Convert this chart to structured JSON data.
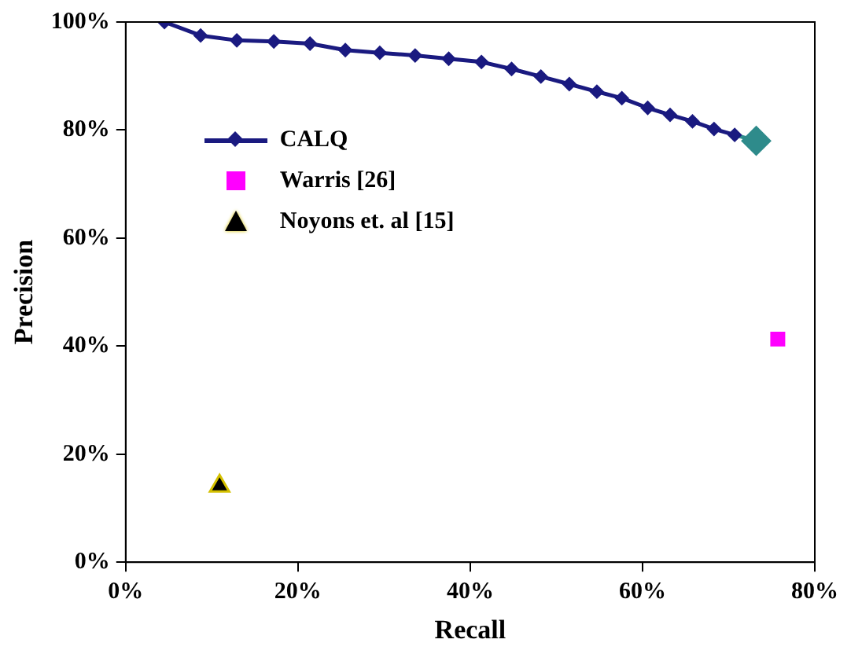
{
  "chart_data": {
    "type": "line",
    "xlabel": "Recall",
    "ylabel": "Precision",
    "xlim": [
      0,
      80
    ],
    "ylim": [
      0,
      100
    ],
    "xticks": [
      {
        "value": 0,
        "label": "0%"
      },
      {
        "value": 20,
        "label": "20%"
      },
      {
        "value": 40,
        "label": "40%"
      },
      {
        "value": 60,
        "label": "60%"
      },
      {
        "value": 80,
        "label": "80%"
      }
    ],
    "yticks": [
      {
        "value": 0,
        "label": "0%"
      },
      {
        "value": 20,
        "label": "20%"
      },
      {
        "value": 40,
        "label": "40%"
      },
      {
        "value": 60,
        "label": "60%"
      },
      {
        "value": 80,
        "label": "80%"
      },
      {
        "value": 100,
        "label": "100%"
      }
    ],
    "grid": false,
    "legend": "top left",
    "series": [
      {
        "name": "CALQ",
        "type": "line",
        "color": "#1a1a80",
        "marker": "diamond",
        "x": [
          4.5,
          8.7,
          12.9,
          17.2,
          21.4,
          25.5,
          29.5,
          33.6,
          37.5,
          41.3,
          44.8,
          48.2,
          51.5,
          54.7,
          57.6,
          60.6,
          63.2,
          65.8,
          68.3,
          70.7
        ],
        "values": [
          100,
          97.5,
          96.6,
          96.4,
          96.0,
          94.8,
          94.3,
          93.8,
          93.2,
          92.6,
          91.3,
          89.9,
          88.5,
          87.1,
          85.9,
          84.1,
          82.8,
          81.6,
          80.2,
          79.1
        ]
      },
      {
        "type": "line",
        "color": "#2e8b8b",
        "marker": "diamond",
        "x": [
          70.7,
          73.2
        ],
        "values": [
          79.1,
          78.0
        ]
      },
      {
        "name": "Warris [26]",
        "type": "scatter",
        "color": "#ff00ff",
        "marker": "square",
        "x": [
          75.7
        ],
        "values": [
          41.3
        ]
      },
      {
        "name": "Noyons et. al [15]",
        "type": "scatter",
        "color": "#000000",
        "marker": "triangle",
        "x": [
          10.9
        ],
        "values": [
          14.1
        ]
      }
    ]
  }
}
